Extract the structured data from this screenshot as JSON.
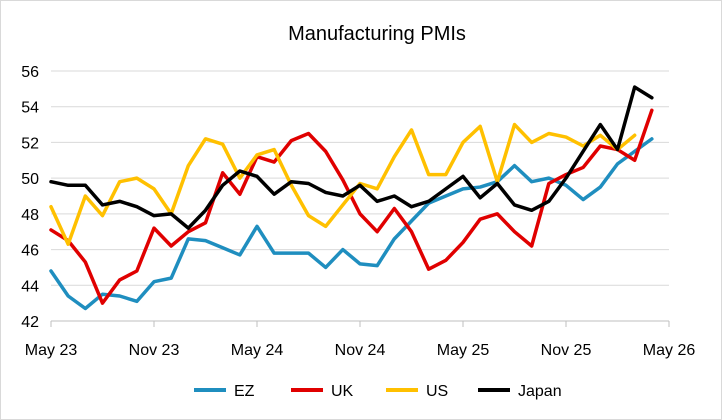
{
  "chart_data": {
    "type": "line",
    "title": "Manufacturing PMIs",
    "xlabel": "",
    "ylabel": "",
    "ylim": [
      42,
      56
    ],
    "yticks": [
      42,
      44,
      46,
      48,
      50,
      52,
      54,
      56
    ],
    "grid": true,
    "legend": "bottom",
    "x_tick_labels": [
      "May 23",
      "Nov 23",
      "May 24",
      "Nov 24",
      "May 25",
      "Nov 25",
      "May 26"
    ],
    "x_start": "May 23",
    "x_end": "May 26",
    "series": [
      {
        "name": "EZ",
        "color": "#1F8EBF",
        "values": [
          44.8,
          43.4,
          42.7,
          43.5,
          43.4,
          43.1,
          44.2,
          44.4,
          46.6,
          46.5,
          46.1,
          45.7,
          47.3,
          45.8,
          45.8,
          45.8,
          45.0,
          46.0,
          45.2,
          45.1,
          46.6,
          47.6,
          48.6,
          49.0,
          49.4,
          49.5,
          49.8,
          50.7,
          49.8,
          50.0,
          49.6,
          48.8,
          49.5,
          50.8,
          51.5,
          52.2
        ]
      },
      {
        "name": "UK",
        "color": "#E00000",
        "values": [
          47.1,
          46.5,
          45.3,
          43.0,
          44.3,
          44.8,
          47.2,
          46.2,
          47.0,
          47.5,
          50.3,
          49.1,
          51.2,
          50.9,
          52.1,
          52.5,
          51.5,
          49.9,
          48.0,
          47.0,
          48.3,
          47.0,
          44.9,
          45.4,
          46.4,
          47.7,
          48.0,
          47.0,
          46.2,
          49.7,
          50.2,
          50.6,
          51.8,
          51.6,
          51.0,
          53.8
        ]
      },
      {
        "name": "US",
        "color": "#FFC000",
        "values": [
          48.4,
          46.3,
          49.0,
          47.9,
          49.8,
          50.0,
          49.4,
          48.0,
          50.7,
          52.2,
          51.9,
          50.0,
          51.3,
          51.6,
          49.6,
          47.9,
          47.3,
          48.5,
          49.7,
          49.4,
          51.2,
          52.7,
          50.2,
          50.2,
          52.0,
          52.9,
          49.8,
          53.0,
          52.0,
          52.5,
          52.3,
          51.8,
          52.4,
          51.6,
          52.4
        ]
      },
      {
        "name": "Japan",
        "color": "#000000",
        "values": [
          49.8,
          49.6,
          49.6,
          48.5,
          48.7,
          48.4,
          47.9,
          48.0,
          47.2,
          48.2,
          49.6,
          50.4,
          50.1,
          49.1,
          49.8,
          49.7,
          49.2,
          49.0,
          49.6,
          48.7,
          49.0,
          48.4,
          48.7,
          49.4,
          50.1,
          48.9,
          49.7,
          48.5,
          48.2,
          48.7,
          50.0,
          51.5,
          53.0,
          51.6,
          55.1,
          54.5
        ]
      }
    ]
  }
}
